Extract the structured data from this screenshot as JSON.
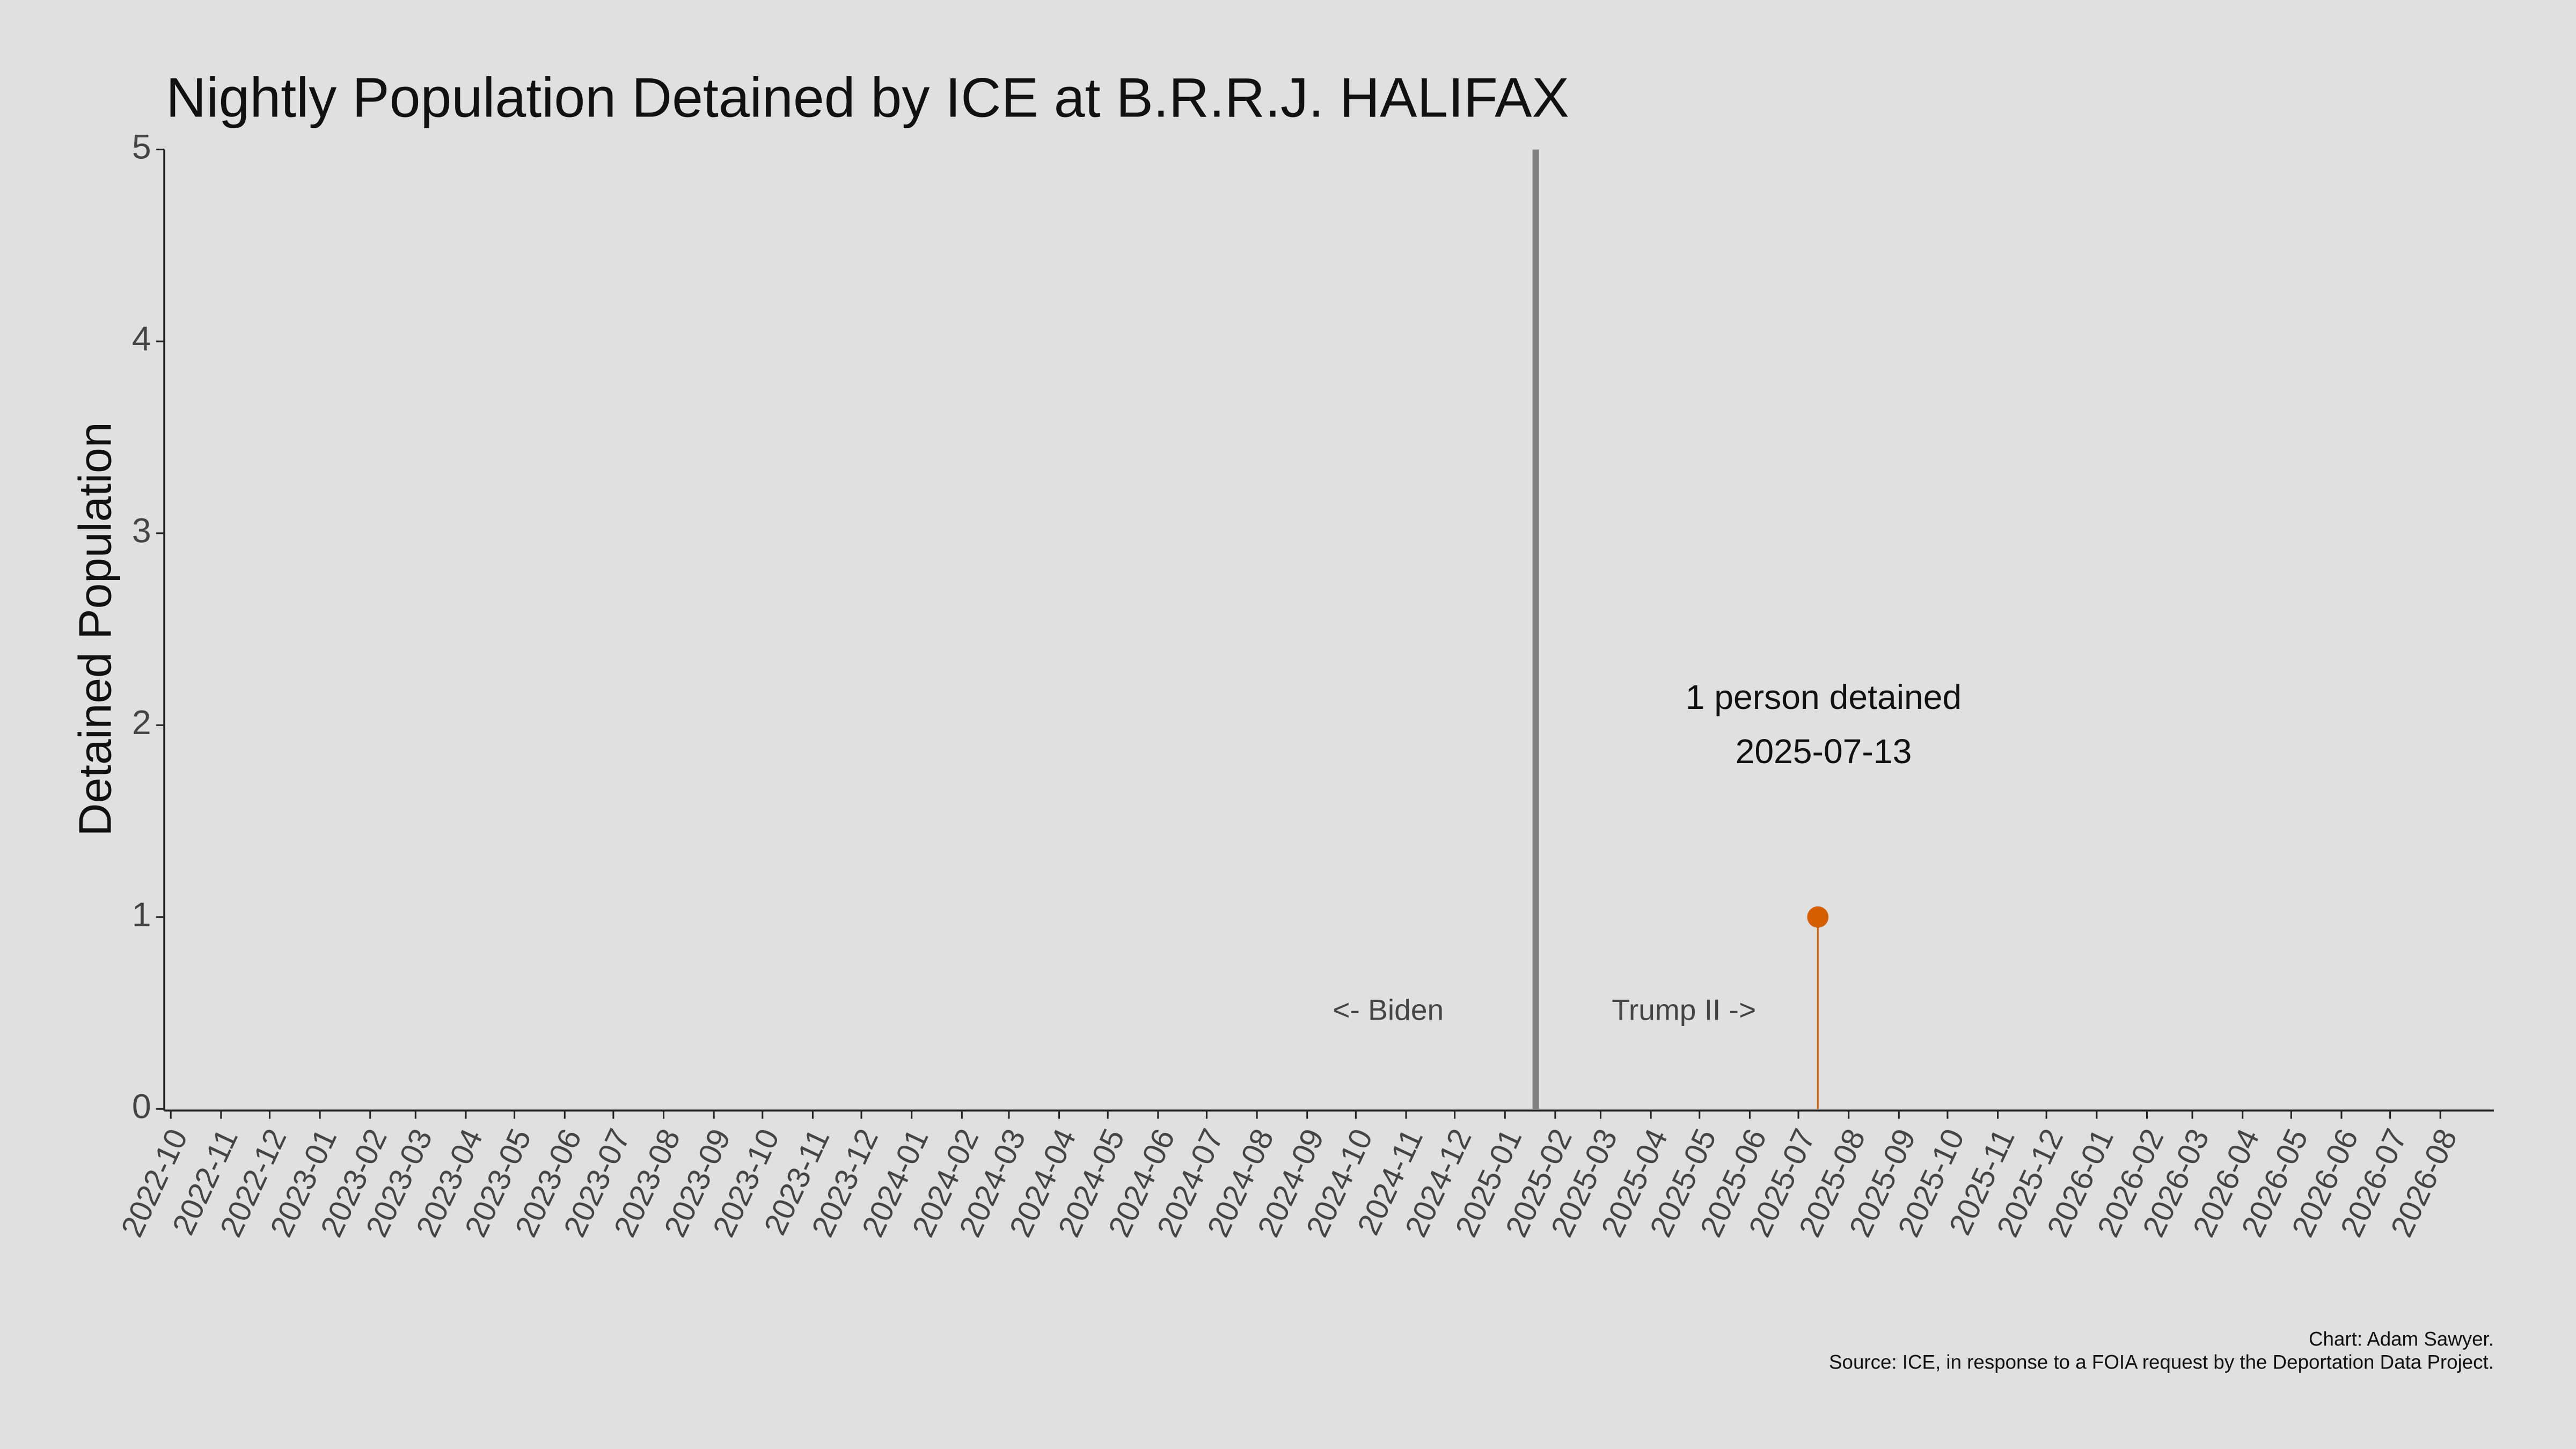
{
  "chart_data": {
    "type": "stem",
    "title": "Nightly Population Detained by ICE at B.R.R.J. HALIFAX",
    "y_label": "Detained Population",
    "x": [
      "2025-07-13"
    ],
    "values": [
      1
    ],
    "color": "#d55e00",
    "xlim": [
      "2022-09-27",
      "2026-09-03"
    ],
    "xticks": [
      "2022-10",
      "2022-11",
      "2022-12",
      "2023-01",
      "2023-02",
      "2023-03",
      "2023-04",
      "2023-05",
      "2023-06",
      "2023-07",
      "2023-08",
      "2023-09",
      "2023-10",
      "2023-11",
      "2023-12",
      "2024-01",
      "2024-02",
      "2024-03",
      "2024-04",
      "2024-05",
      "2024-06",
      "2024-07",
      "2024-08",
      "2024-09",
      "2024-10",
      "2024-11",
      "2024-12",
      "2025-01",
      "2025-02",
      "2025-03",
      "2025-04",
      "2025-05",
      "2025-06",
      "2025-07",
      "2025-08",
      "2025-09",
      "2025-10",
      "2025-11",
      "2025-12",
      "2026-01",
      "2026-02",
      "2026-03",
      "2026-04",
      "2026-05",
      "2026-06",
      "2026-07",
      "2026-08"
    ],
    "ylim": [
      0,
      5
    ],
    "yticks": [
      0,
      1,
      2,
      3,
      4,
      5
    ],
    "vline": "2025-01-20",
    "vline_color": "#808080",
    "annotations": [
      "1 person detained",
      "2025-07-13",
      "<- Biden",
      "Trump II ->"
    ],
    "credits": [
      "Chart: Adam Sawyer.",
      "Source: ICE, in response to a FOIA request by the Deportation Data Project."
    ]
  }
}
